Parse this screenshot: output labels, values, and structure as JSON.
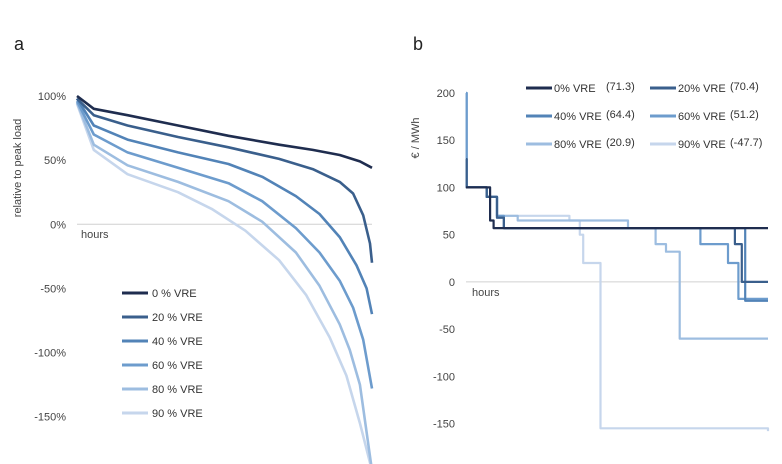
{
  "chart_data": [
    {
      "type": "line",
      "panel_label": "a",
      "title": "",
      "xlabel": "hours",
      "ylabel": "relative to peak load",
      "ylim": [
        -190,
        100
      ],
      "yticks": [
        100,
        50,
        0,
        -50,
        -100,
        -150
      ],
      "ytick_labels": [
        "100%",
        "50%",
        "0%",
        "-50%",
        "-100%",
        "-150%"
      ],
      "x_range": [
        0,
        8760
      ],
      "legend_position": "bottom-center",
      "series": [
        {
          "name": "0 % VRE",
          "color": "#1f2d4f",
          "x": [
            0,
            500,
            1500,
            3000,
            4500,
            6000,
            7000,
            7800,
            8400,
            8760
          ],
          "values": [
            100,
            90,
            85,
            77,
            69,
            62,
            58,
            54,
            49,
            44
          ]
        },
        {
          "name": "20 % VRE",
          "color": "#3a5f8c",
          "x": [
            0,
            500,
            1500,
            3000,
            4500,
            6000,
            7000,
            7800,
            8200,
            8500,
            8700,
            8760
          ],
          "values": [
            98,
            85,
            77,
            68,
            60,
            51,
            43,
            33,
            24,
            7,
            -15,
            -30
          ]
        },
        {
          "name": "40 % VRE",
          "color": "#5283b7",
          "x": [
            0,
            500,
            1500,
            3000,
            4500,
            5500,
            6500,
            7200,
            7800,
            8300,
            8600,
            8760
          ],
          "values": [
            98,
            77,
            66,
            56,
            47,
            37,
            22,
            8,
            -10,
            -32,
            -50,
            -70
          ]
        },
        {
          "name": "60 % VRE",
          "color": "#6d9ccd",
          "x": [
            0,
            500,
            1500,
            3000,
            4500,
            5500,
            6500,
            7200,
            7800,
            8200,
            8500,
            8760
          ],
          "values": [
            96,
            70,
            56,
            44,
            32,
            18,
            -3,
            -22,
            -44,
            -65,
            -90,
            -128
          ]
        },
        {
          "name": "80 % VRE",
          "color": "#9dbde0",
          "x": [
            0,
            500,
            1500,
            3000,
            4500,
            5500,
            6500,
            7200,
            7800,
            8100,
            8400,
            8760
          ],
          "values": [
            95,
            62,
            46,
            33,
            18,
            2,
            -22,
            -48,
            -78,
            -98,
            -125,
            -192
          ]
        },
        {
          "name": "90 % VRE",
          "color": "#c6d6ec",
          "x": [
            0,
            500,
            1500,
            3000,
            4000,
            5000,
            6000,
            6800,
            7500,
            8000,
            8400,
            8760
          ],
          "values": [
            94,
            58,
            39,
            25,
            12,
            -5,
            -28,
            -55,
            -88,
            -118,
            -155,
            -192
          ]
        }
      ]
    },
    {
      "type": "line",
      "panel_label": "b",
      "title": "",
      "xlabel": "hours",
      "ylabel": "€ / MWh",
      "ylim": [
        -160,
        200
      ],
      "yticks": [
        200,
        150,
        100,
        50,
        0,
        -50,
        -100,
        -150
      ],
      "ytick_labels": [
        "200",
        "150",
        "100",
        "50",
        "0",
        "-50",
        "-100",
        "-150"
      ],
      "x_range": [
        0,
        8760
      ],
      "legend_position": "top-right",
      "series": [
        {
          "name": "0% VRE",
          "mean_label": "(71.3)",
          "color": "#1f2d4f",
          "x": [
            0,
            20,
            80,
            500,
            700,
            800,
            8760
          ],
          "values": [
            100,
            100,
            100,
            100,
            65,
            57,
            57
          ]
        },
        {
          "name": "20% VRE",
          "mean_label": "(70.4)",
          "color": "#3a5f8c",
          "x": [
            0,
            20,
            80,
            600,
            900,
            1100,
            7700,
            7800,
            8000,
            8760
          ],
          "values": [
            130,
            100,
            100,
            90,
            68,
            57,
            57,
            40,
            0,
            0
          ]
        },
        {
          "name": "40% VRE",
          "mean_label": "(64.4)",
          "color": "#5283b7",
          "x": [
            0,
            20,
            80,
            600,
            900,
            1100,
            7900,
            8100,
            8760
          ],
          "values": [
            100,
            100,
            100,
            90,
            68,
            57,
            57,
            -20,
            -20
          ]
        },
        {
          "name": "60% VRE",
          "mean_label": "(51.2)",
          "color": "#6d9ccd",
          "x": [
            0,
            20,
            80,
            600,
            900,
            1100,
            6500,
            6800,
            7200,
            7600,
            7900,
            8760
          ],
          "values": [
            200,
            100,
            100,
            90,
            70,
            57,
            57,
            40,
            40,
            20,
            -18,
            -18
          ]
        },
        {
          "name": "80% VRE",
          "mean_label": "(20.9)",
          "color": "#9dbde0",
          "x": [
            0,
            20,
            80,
            600,
            900,
            1500,
            4600,
            4700,
            5200,
            5500,
            5800,
            6200,
            8760
          ],
          "values": [
            200,
            100,
            100,
            90,
            70,
            65,
            65,
            57,
            57,
            40,
            32,
            -60,
            -60
          ]
        },
        {
          "name": "90% VRE",
          "mean_label": "(-47.7)",
          "color": "#c6d6ec",
          "x": [
            0,
            20,
            80,
            600,
            900,
            3000,
            3300,
            3400,
            3700,
            3900,
            8760
          ],
          "values": [
            200,
            100,
            100,
            90,
            70,
            65,
            50,
            20,
            20,
            -155,
            -158
          ]
        }
      ]
    }
  ]
}
